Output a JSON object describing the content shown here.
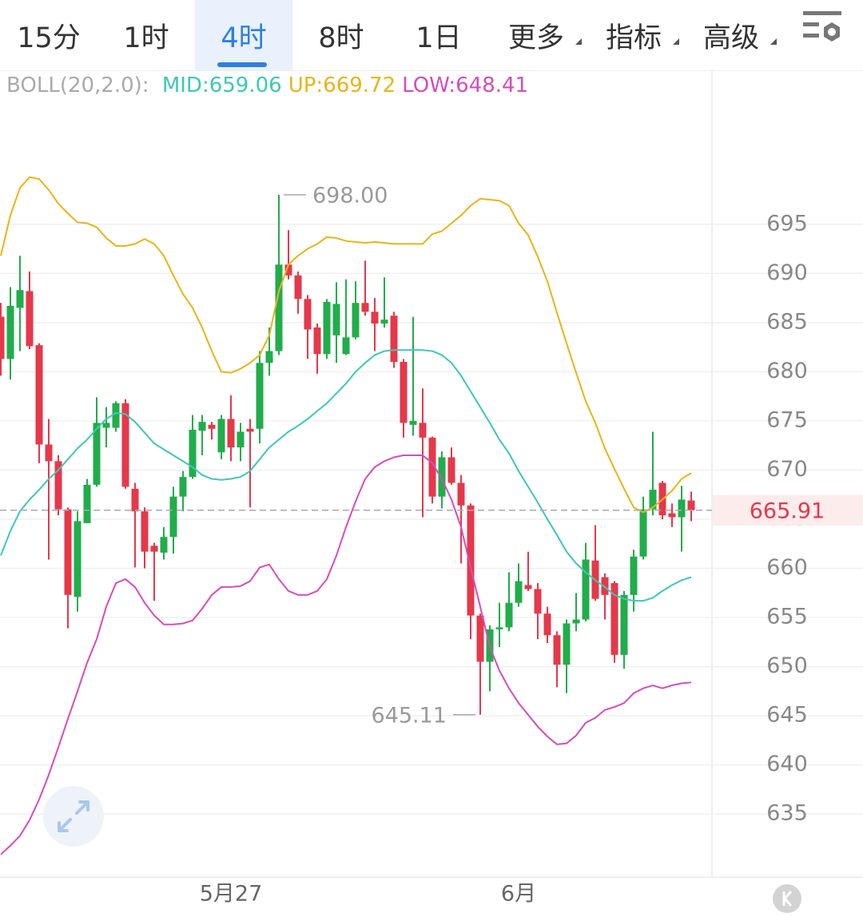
{
  "tabs": [
    "15分",
    "1时",
    "4时",
    "8时",
    "1日",
    "更多",
    "指标",
    "高级"
  ],
  "active_tab": 2,
  "chart_data": {
    "type": "candlestick",
    "indicator_label": "BOLL(20,2.0):",
    "categories": [
      null,
      null,
      null,
      null,
      null,
      null,
      null,
      null,
      null,
      null,
      null,
      null,
      null,
      null,
      null,
      null,
      null,
      null,
      null,
      null,
      null,
      null,
      null,
      null,
      "5月27",
      null,
      null,
      null,
      null,
      null,
      null,
      null,
      null,
      null,
      null,
      null,
      null,
      null,
      null,
      null,
      null,
      null,
      null,
      null,
      null,
      null,
      null,
      null,
      null,
      null,
      null,
      null,
      null,
      null,
      "6月",
      null,
      null,
      null,
      null,
      null,
      null,
      null,
      null,
      null,
      null,
      null,
      null,
      null,
      null,
      null,
      null,
      null,
      null
    ],
    "open": [
      685.6,
      681.3,
      686.5,
      688.2,
      682.7,
      672.6,
      670.9,
      666.0,
      657.1,
      664.6,
      668.5,
      674.3,
      674.3,
      676.8,
      668.1,
      665.8,
      662.3,
      661.6,
      663.2,
      667.3,
      669.3,
      674.0,
      674.6,
      671.8,
      675.2,
      672.3,
      674.2,
      674.2,
      680.9,
      682.1,
      690.9,
      689.8,
      687.4,
      684.5,
      681.8,
      683.7,
      681.8,
      683.5,
      687.0,
      686.1,
      684.9,
      685.7,
      681.0,
      674.6,
      674.8,
      673.3,
      667.3,
      671.3,
      668.7,
      666.4,
      655.2,
      650.5,
      653.8,
      654.0,
      656.5,
      658.3,
      657.9,
      655.4,
      653.2,
      650.2,
      654.4,
      654.8,
      660.8,
      659.1,
      658.5,
      651.2,
      657.3,
      661.2,
      666.0,
      668.7,
      665.6,
      665.2,
      666.9
    ],
    "high": [
      687.0,
      688.6,
      691.8,
      690.2,
      682.9,
      675.2,
      671.5,
      666.2,
      665.8,
      669.1,
      677.4,
      676.4,
      677.0,
      677.2,
      668.7,
      666.2,
      662.6,
      664.2,
      668.3,
      669.9,
      675.6,
      675.6,
      674.9,
      675.6,
      677.6,
      674.8,
      675.2,
      682.1,
      684.5,
      698.0,
      694.4,
      690.2,
      687.8,
      684.9,
      687.4,
      689.1,
      689.4,
      689.2,
      691.3,
      687.5,
      689.6,
      686.1,
      681.3,
      685.6,
      678.3,
      673.4,
      671.9,
      672.3,
      669.5,
      666.6,
      655.4,
      654.2,
      656.5,
      659.6,
      660.5,
      661.7,
      658.5,
      656.1,
      653.6,
      654.8,
      657.5,
      662.6,
      664.4,
      659.5,
      658.7,
      657.7,
      661.9,
      667.3,
      673.9,
      668.9,
      666.6,
      668.4,
      667.8
    ],
    "low": [
      679.6,
      679.2,
      682.1,
      682.3,
      670.7,
      660.9,
      665.4,
      653.9,
      655.6,
      664.6,
      668.3,
      672.3,
      673.9,
      668.1,
      660.1,
      660.0,
      656.7,
      660.9,
      661.5,
      665.8,
      669.1,
      671.5,
      673.1,
      671.1,
      670.9,
      670.9,
      666.2,
      672.7,
      679.6,
      681.7,
      689.4,
      685.9,
      681.3,
      679.8,
      681.3,
      680.9,
      681.7,
      683.3,
      685.7,
      682.1,
      684.5,
      680.4,
      673.3,
      673.5,
      665.2,
      666.6,
      666.1,
      668.5,
      660.5,
      652.8,
      645.11,
      647.5,
      652.0,
      653.6,
      656.1,
      657.7,
      652.8,
      652.4,
      647.9,
      647.3,
      653.6,
      654.6,
      656.7,
      654.8,
      650.4,
      649.8,
      655.6,
      660.9,
      665.4,
      665.0,
      664.2,
      661.7,
      664.8
    ],
    "close": [
      681.3,
      686.7,
      688.3,
      682.6,
      672.6,
      670.9,
      666.0,
      657.3,
      664.8,
      668.5,
      674.8,
      674.8,
      676.8,
      668.3,
      665.8,
      661.7,
      661.7,
      663.2,
      667.3,
      669.3,
      674.1,
      674.9,
      674.2,
      675.2,
      672.3,
      673.9,
      673.9,
      680.9,
      682.1,
      690.9,
      689.8,
      687.4,
      684.3,
      681.8,
      687.1,
      686.9,
      683.5,
      687.0,
      686.1,
      684.9,
      685.3,
      681.0,
      674.8,
      675.0,
      673.3,
      667.3,
      671.3,
      668.7,
      666.4,
      655.2,
      650.5,
      653.8,
      654.0,
      656.5,
      658.7,
      657.9,
      655.4,
      653.2,
      650.2,
      654.4,
      654.8,
      660.9,
      656.9,
      657.3,
      651.2,
      657.3,
      661.2,
      666.0,
      668.0,
      665.4,
      665.2,
      667.0,
      665.91
    ],
    "up_color": "#21ad4b",
    "down_color": "#e5384b",
    "series": [
      {
        "name": "MID:659.06",
        "color": "#3cc9b5",
        "values": [
          661.3,
          663.8,
          665.8,
          667.0,
          668.0,
          669.1,
          670.0,
          671.1,
          672.2,
          673.1,
          674.2,
          675.2,
          675.8,
          675.7,
          674.9,
          673.8,
          672.7,
          672.1,
          671.5,
          670.9,
          670.3,
          669.5,
          669.1,
          669.0,
          669.1,
          669.3,
          669.9,
          671.1,
          672.3,
          673.1,
          673.9,
          674.5,
          675.2,
          676.0,
          676.8,
          677.8,
          678.8,
          680.0,
          680.9,
          681.7,
          682.1,
          682.2,
          682.2,
          682.2,
          682.2,
          682.1,
          681.7,
          680.9,
          679.6,
          678.0,
          676.4,
          674.8,
          673.1,
          671.7,
          669.9,
          668.3,
          666.7,
          665.0,
          663.4,
          661.7,
          660.5,
          659.6,
          658.8,
          658.1,
          657.3,
          656.9,
          656.7,
          656.7,
          657.0,
          657.7,
          658.3,
          658.8,
          659.1
        ]
      },
      {
        "name": "UP:669.72",
        "color": "#e8b515",
        "values": [
          691.8,
          695.9,
          698.7,
          699.8,
          699.6,
          698.5,
          697.1,
          696.1,
          695.2,
          695.1,
          694.7,
          693.6,
          692.8,
          692.8,
          693.0,
          693.5,
          693.0,
          691.8,
          689.8,
          687.9,
          686.5,
          684.5,
          682.1,
          680.0,
          679.9,
          680.3,
          680.9,
          681.7,
          683.7,
          688.2,
          690.9,
          691.8,
          692.5,
          693.0,
          693.7,
          693.6,
          693.3,
          693.2,
          693.1,
          693.2,
          693.1,
          693.0,
          693.0,
          693.0,
          693.0,
          694.0,
          694.3,
          695.1,
          695.9,
          696.9,
          697.6,
          697.5,
          697.4,
          696.9,
          695.1,
          693.9,
          691.7,
          689.2,
          686.0,
          682.9,
          679.9,
          677.0,
          674.8,
          672.2,
          670.1,
          668.1,
          666.2,
          665.7,
          666.2,
          667.0,
          667.9,
          669.1,
          669.7
        ]
      },
      {
        "name": "LOW:648.41",
        "color": "#d64cbc",
        "values": [
          630.9,
          631.8,
          632.8,
          634.4,
          636.5,
          639.0,
          641.8,
          644.7,
          647.5,
          650.4,
          652.8,
          656.1,
          658.5,
          658.9,
          658.1,
          656.5,
          655.2,
          654.3,
          654.3,
          654.4,
          654.7,
          655.9,
          657.3,
          658.1,
          658.1,
          658.2,
          658.7,
          660.1,
          660.4,
          658.9,
          657.7,
          657.3,
          657.3,
          657.7,
          658.9,
          661.3,
          664.2,
          666.8,
          669.1,
          670.3,
          670.9,
          671.3,
          671.5,
          671.5,
          671.5,
          670.7,
          669.1,
          667.0,
          664.2,
          660.1,
          656.1,
          652.0,
          649.6,
          647.8,
          646.3,
          645.1,
          643.9,
          642.9,
          642.1,
          642.2,
          643.0,
          644.3,
          644.8,
          645.6,
          645.9,
          646.3,
          647.3,
          647.8,
          648.1,
          647.8,
          648.1,
          648.3,
          648.4
        ]
      }
    ],
    "ylim": [
      628.6,
      710.5
    ],
    "yticks": [
      635,
      640,
      645,
      650,
      655,
      660,
      665,
      670,
      675,
      680,
      685,
      690,
      695
    ],
    "grid": true,
    "last_price": 665.91,
    "high_mark": {
      "value": 698,
      "label": "698.00"
    },
    "low_mark": 645.11
  }
}
